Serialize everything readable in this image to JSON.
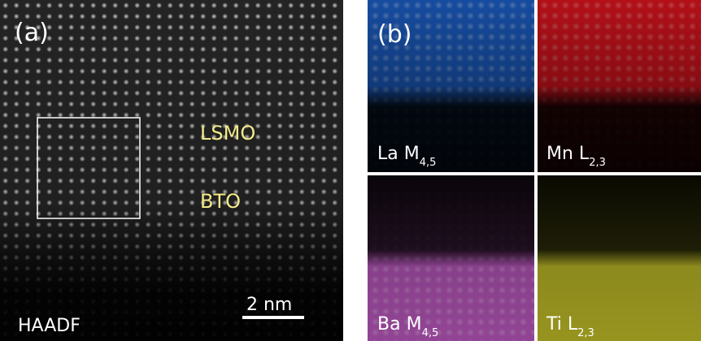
{
  "panel_a": {
    "label": "(a)",
    "annotations": [
      "LSMO",
      "BTO"
    ],
    "scale_bar": "2 nm",
    "detector": "HAADF"
  },
  "panel_b": {
    "label": "(b)",
    "maps": [
      {
        "name": "La M",
        "subscript": "4,5"
      },
      {
        "name": "Mn L",
        "subscript": "2,3"
      },
      {
        "name": "Ba M",
        "subscript": "4,5"
      },
      {
        "name": "Ti L",
        "subscript": "2,3"
      }
    ]
  }
}
